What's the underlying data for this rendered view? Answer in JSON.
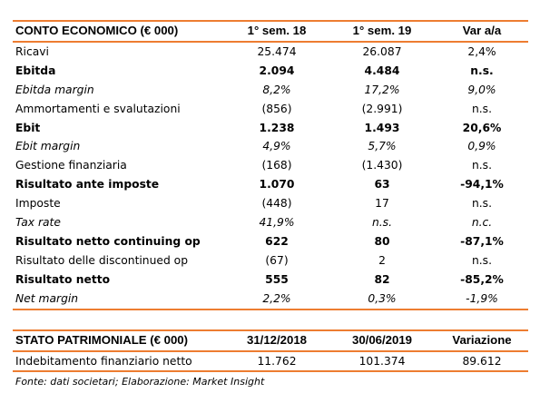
{
  "income_statement": {
    "header": [
      "CONTO ECONOMICO (€ 000)",
      "1° sem. 18",
      "1° sem. 19",
      "Var a/a"
    ],
    "rows": [
      {
        "label": "Ricavi",
        "values": [
          "25.474",
          "26.087",
          "2,4%"
        ],
        "style": "normal"
      },
      {
        "label": "Ebitda",
        "values": [
          "2.094",
          "4.484",
          "n.s."
        ],
        "style": "bold"
      },
      {
        "label": "Ebitda margin",
        "values": [
          "8,2%",
          "17,2%",
          "9,0%"
        ],
        "style": "italic"
      },
      {
        "label": "Ammortamenti e svalutazioni",
        "values": [
          "(856)",
          "(2.991)",
          "n.s."
        ],
        "style": "normal"
      },
      {
        "label": "Ebit",
        "values": [
          "1.238",
          "1.493",
          "20,6%"
        ],
        "style": "bold"
      },
      {
        "label": "Ebit margin",
        "values": [
          "4,9%",
          "5,7%",
          "0,9%"
        ],
        "style": "italic"
      },
      {
        "label": "Gestione finanziaria",
        "values": [
          "(168)",
          "(1.430)",
          "n.s."
        ],
        "style": "normal"
      },
      {
        "label": "Risultato ante imposte",
        "values": [
          "1.070",
          "63",
          "-94,1%"
        ],
        "style": "bold"
      },
      {
        "label": "Imposte",
        "values": [
          "(448)",
          "17",
          "n.s."
        ],
        "style": "normal"
      },
      {
        "label": "Tax rate",
        "values": [
          "41,9%",
          "n.s.",
          "n.c."
        ],
        "style": "italic"
      },
      {
        "label": "Risultato netto continuing op",
        "values": [
          "622",
          "80",
          "-87,1%"
        ],
        "style": "bold"
      },
      {
        "label": "Risultato delle discontinued op",
        "values": [
          "(67)",
          "2",
          "n.s."
        ],
        "style": "normal"
      },
      {
        "label": "Risultato netto",
        "values": [
          "555",
          "82",
          "-85,2%"
        ],
        "style": "bold"
      },
      {
        "label": "Net margin",
        "values": [
          "2,2%",
          "0,3%",
          "-1,9%"
        ],
        "style": "italic"
      }
    ]
  },
  "balance_sheet": {
    "header": [
      "STATO PATRIMONIALE (€ 000)",
      "31/12/2018",
      "30/06/2019",
      "Variazione"
    ],
    "rows": [
      {
        "label": "Indebitamento finanziario netto",
        "values": [
          "11.762",
          "101.374",
          "89.612"
        ],
        "style": "normal"
      }
    ]
  },
  "source_note": "Fonte: dati societari; Elaborazione: Market Insight",
  "accent_color": "#ed7d31"
}
